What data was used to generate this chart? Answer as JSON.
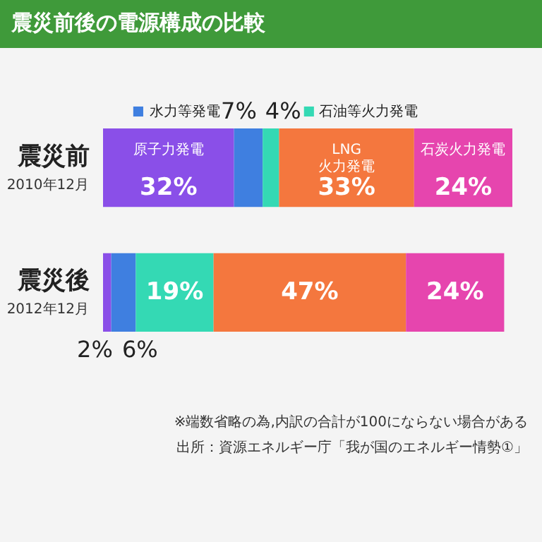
{
  "chart_data": {
    "type": "bar",
    "orientation": "horizontal",
    "stacked": true,
    "title": "震災前後の電源構成の比較",
    "categories": [
      "震災前",
      "震災後"
    ],
    "series": [
      {
        "name": "原子力発電",
        "color": "#8a4fe8",
        "values": [
          32,
          2
        ],
        "value_labels": [
          "32%",
          "2%"
        ]
      },
      {
        "name": "水力等発電",
        "color": "#3f7fe0",
        "values": [
          7,
          6
        ],
        "value_labels": [
          "7%",
          "6%"
        ]
      },
      {
        "name": "石油等火力発電",
        "color": "#34d9b4",
        "values": [
          4,
          19
        ],
        "value_labels": [
          "4%",
          "19%"
        ]
      },
      {
        "name": "LNG\n火力発電",
        "color": "#f4773e",
        "values": [
          33,
          47
        ],
        "value_labels": [
          "33%",
          "47%"
        ]
      },
      {
        "name": "石炭火力発電",
        "color": "#e645ae",
        "values": [
          24,
          24
        ],
        "value_labels": [
          "24%",
          "24%"
        ]
      }
    ],
    "annotations": [
      "2010年12月",
      "2012年12月",
      "※端数省略の為,内訳の合計が100にならない場合がある",
      "出所：資源エネルギー庁「我が国のエネルギー情勢①」"
    ],
    "legend": "top"
  }
}
